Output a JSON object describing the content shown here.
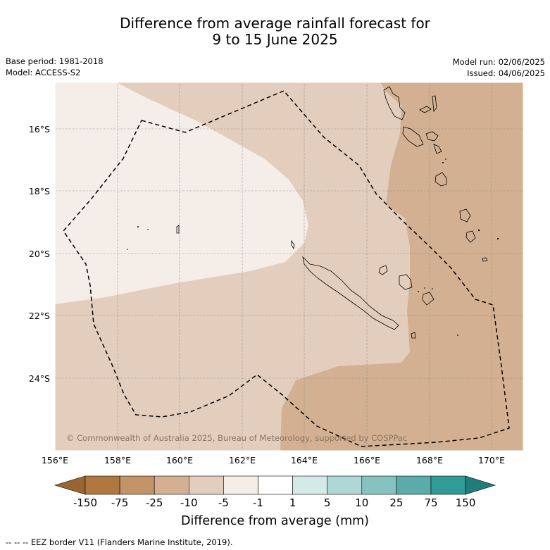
{
  "title_line1": "Difference from average rainfall forecast for",
  "title_line2": "9 to 15 June 2025",
  "base_period": "Base period: 1981-2018",
  "model": "Model: ACCESS-S2",
  "model_run": "Model run: 02/06/2025",
  "issued": "Issued: 04/06/2025",
  "copyright": "© Commonwealth of Australia 2025, Bureau of Meteorology, supported by COSPPac",
  "lat_labels": [
    "16°S",
    "18°S",
    "20°S",
    "22°S",
    "24°S"
  ],
  "lon_labels": [
    "156°E",
    "158°E",
    "160°E",
    "162°E",
    "164°E",
    "166°E",
    "168°E",
    "170°E"
  ],
  "colorbar": {
    "title": "Difference from average (mm)",
    "tick_labels": [
      "-150",
      "-75",
      "-25",
      "-10",
      "-5",
      "-1",
      "1",
      "5",
      "10",
      "25",
      "75",
      "150"
    ],
    "colors": [
      "#9b6531",
      "#b07840",
      "#c29468",
      "#d3b091",
      "#e3cebd",
      "#f5ede8",
      "#ffffff",
      "#d4eae8",
      "#aed7d5",
      "#86c3c0",
      "#5aabaa",
      "#339b96",
      "#1f7d7a"
    ]
  },
  "footer": "--  --  -- EEZ border V11 (Flanders Marine Institute, 2019).",
  "legend_colors": {
    "dry_-1_to_-5": "#f5ede8",
    "dry_-5_to_-10": "#e3cebd",
    "dry_-10_to_-25": "#d3b091",
    "eez_border": "#000000"
  }
}
